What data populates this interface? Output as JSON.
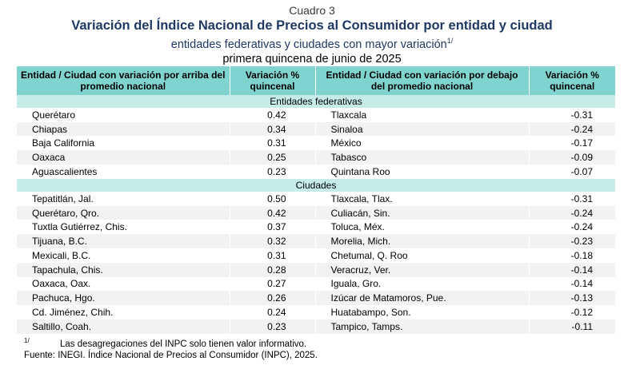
{
  "cuadro": "Cuadro 3",
  "title": "Variación del Índice Nacional de Precios al Consumidor por entidad y ciudad",
  "subtitle": "entidades federativas y ciudades con mayor variación",
  "subtitle_note": "1/",
  "period": "primera quincena de junio de 2025",
  "headers": {
    "col1": "Entidad / Ciudad con variación por arriba del promedio nacional",
    "col2": "Variación % quincenal",
    "col3": "Entidad / Ciudad con variación por debajo del promedio nacional",
    "col4": "Variación % quincenal"
  },
  "sections": [
    {
      "label": "Entidades federativas",
      "rows": [
        {
          "above": "Querétaro",
          "above_val": "0.42",
          "below": "Tlaxcala",
          "below_val": "-0.31"
        },
        {
          "above": "Chiapas",
          "above_val": "0.34",
          "below": "Sinaloa",
          "below_val": "-0.24"
        },
        {
          "above": "Baja California",
          "above_val": "0.31",
          "below": "México",
          "below_val": "-0.17"
        },
        {
          "above": "Oaxaca",
          "above_val": "0.25",
          "below": "Tabasco",
          "below_val": "-0.09"
        },
        {
          "above": "Aguascalientes",
          "above_val": "0.23",
          "below": "Quintana Roo",
          "below_val": "-0.07"
        }
      ]
    },
    {
      "label": "Ciudades",
      "rows": [
        {
          "above": "Tepatitlán, Jal.",
          "above_val": "0.50",
          "below": "Tlaxcala, Tlax.",
          "below_val": "-0.31"
        },
        {
          "above": "Querétaro, Qro.",
          "above_val": "0.42",
          "below": "Culiacán, Sin.",
          "below_val": "-0.24"
        },
        {
          "above": "Tuxtla Gutiérrez, Chis.",
          "above_val": "0.37",
          "below": "Toluca, Méx.",
          "below_val": "-0.24"
        },
        {
          "above": "Tijuana, B.C.",
          "above_val": "0.32",
          "below": "Morelia, Mich.",
          "below_val": "-0.23"
        },
        {
          "above": "Mexicali, B.C.",
          "above_val": "0.31",
          "below": "Chetumal, Q. Roo",
          "below_val": "-0.18"
        },
        {
          "above": "Tapachula, Chis.",
          "above_val": "0.28",
          "below": "Veracruz, Ver.",
          "below_val": "-0.14"
        },
        {
          "above": "Oaxaca, Oax.",
          "above_val": "0.27",
          "below": "Iguala, Gro.",
          "below_val": "-0.14"
        },
        {
          "above": "Pachuca, Hgo.",
          "above_val": "0.26",
          "below": "Izúcar de Matamoros, Pue.",
          "below_val": "-0.13"
        },
        {
          "above": "Cd. Jiménez, Chih.",
          "above_val": "0.24",
          "below": "Huatabampo, Son.",
          "below_val": "-0.12"
        },
        {
          "above": "Saltillo, Coah.",
          "above_val": "0.23",
          "below": "Tampico, Tamps.",
          "below_val": "-0.11"
        }
      ]
    }
  ],
  "footnote_marker": "1/",
  "footnote_text": "Las desagregaciones del INPC solo tienen valor informativo.",
  "source": "Fuente: INEGI. Índice Nacional de Precios al Consumidor (INPC), 2025."
}
